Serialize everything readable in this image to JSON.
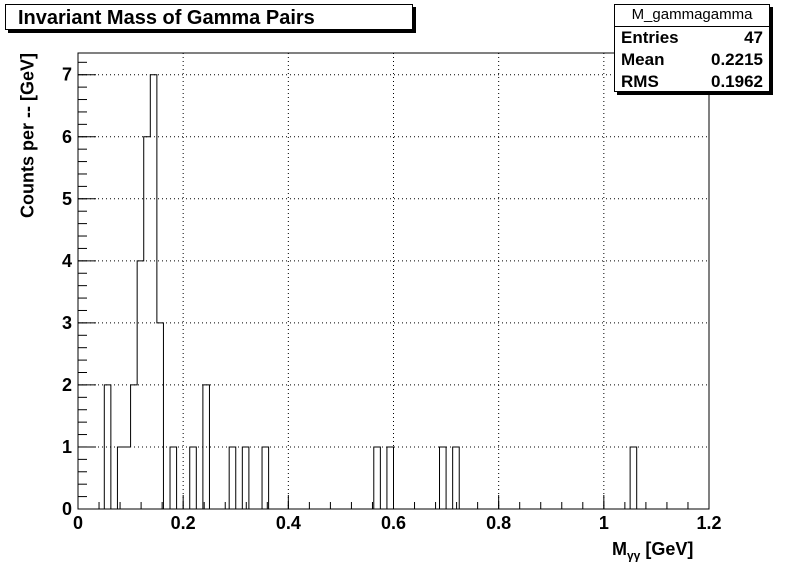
{
  "chart_data": {
    "type": "bar",
    "title": "Invariant Mass of Gamma Pairs",
    "xlabel_main": "M",
    "xlabel_sub": "γγ",
    "xlabel_unit": " [GeV]",
    "ylabel": "Counts per -- [GeV]",
    "xlim": [
      0,
      1.2
    ],
    "ylim": [
      0,
      7.35
    ],
    "grid": true,
    "xticks": [
      "0",
      "0.2",
      "0.4",
      "0.6",
      "0.8",
      "1",
      "1.2"
    ],
    "yticks": [
      "0",
      "1",
      "2",
      "3",
      "4",
      "5",
      "6",
      "7"
    ],
    "bin_width": 0.0125,
    "bins": [
      {
        "x": 0.05,
        "value": 2
      },
      {
        "x": 0.075,
        "value": 1
      },
      {
        "x": 0.0875,
        "value": 1
      },
      {
        "x": 0.1,
        "value": 2
      },
      {
        "x": 0.1125,
        "value": 4
      },
      {
        "x": 0.125,
        "value": 6
      },
      {
        "x": 0.1375,
        "value": 7
      },
      {
        "x": 0.15,
        "value": 3
      },
      {
        "x": 0.175,
        "value": 1
      },
      {
        "x": 0.2125,
        "value": 1
      },
      {
        "x": 0.2375,
        "value": 2
      },
      {
        "x": 0.2875,
        "value": 1
      },
      {
        "x": 0.3125,
        "value": 1
      },
      {
        "x": 0.35,
        "value": 1
      },
      {
        "x": 0.5625,
        "value": 1
      },
      {
        "x": 0.5875,
        "value": 1
      },
      {
        "x": 0.6875,
        "value": 1
      },
      {
        "x": 0.7125,
        "value": 1
      },
      {
        "x": 1.05,
        "value": 1
      }
    ]
  },
  "stats": {
    "name": "M_gammagamma",
    "rows": [
      {
        "label": "Entries",
        "value": "47"
      },
      {
        "label": "Mean",
        "value": "0.2215"
      },
      {
        "label": "RMS",
        "value": "0.1962"
      }
    ]
  }
}
